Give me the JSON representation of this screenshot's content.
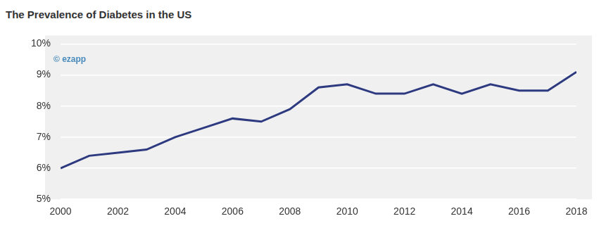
{
  "chart_data": {
    "type": "line",
    "title": "The Prevalence of Diabetes in the US",
    "annotations": [
      "© ezapp"
    ],
    "x": [
      2000,
      2001,
      2002,
      2003,
      2004,
      2005,
      2006,
      2007,
      2008,
      2009,
      2010,
      2011,
      2012,
      2013,
      2014,
      2015,
      2016,
      2017,
      2018
    ],
    "values": [
      6.0,
      6.4,
      6.5,
      6.6,
      7.0,
      7.3,
      7.6,
      7.5,
      7.9,
      8.6,
      8.7,
      8.4,
      8.4,
      8.7,
      8.4,
      8.7,
      8.5,
      8.5,
      9.1
    ],
    "color": "#2e3a80",
    "xlim": [
      2000,
      2018
    ],
    "xticks": [
      2000,
      2002,
      2004,
      2006,
      2008,
      2010,
      2012,
      2014,
      2016,
      2018
    ],
    "ylim": [
      5,
      10
    ],
    "yticks": [
      {
        "value": 5,
        "label": "5%"
      },
      {
        "value": 6,
        "label": "6%"
      },
      {
        "value": 7,
        "label": "7%"
      },
      {
        "value": 8,
        "label": "8%"
      },
      {
        "value": 9,
        "label": "9%"
      },
      {
        "value": 10,
        "label": "10%"
      }
    ],
    "grid": true
  }
}
